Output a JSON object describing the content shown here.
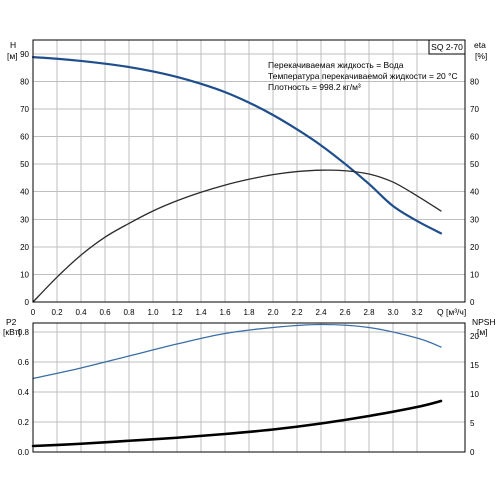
{
  "chart_data": {
    "type": "line",
    "title": "SQ 2-70",
    "notes": [
      "Перекачиваемая жидкость = Вода",
      "Температура перекачиваемой жидкости = 20 °C",
      "Плотность = 998.2 кг/м³"
    ],
    "x_axis": {
      "label_text": "Q",
      "label_unit": "[м³/ч]",
      "range": [
        0,
        3.6
      ],
      "ticks": [
        "0",
        "0.2",
        "0.4",
        "0.6",
        "0.8",
        "1.0",
        "1.2",
        "1.4",
        "1.6",
        "1.8",
        "2.0",
        "2.2",
        "2.4",
        "2.6",
        "2.8",
        "3.0",
        "3.2"
      ]
    },
    "top_panel": {
      "left_axis": {
        "label_line1": "H",
        "label_line2": "[м]",
        "range": [
          0,
          95
        ],
        "ticks": [
          "0",
          "10",
          "20",
          "30",
          "40",
          "50",
          "60",
          "70",
          "80",
          "90"
        ]
      },
      "right_axis": {
        "label_line1": "eta",
        "label_line2": "[%]",
        "range": [
          0,
          95
        ],
        "ticks": [
          "0",
          "10",
          "20",
          "30",
          "40",
          "50",
          "60",
          "70",
          "80"
        ]
      },
      "series": [
        {
          "id": "head",
          "axis": "left",
          "color": "#1f4e8c",
          "x": [
            0,
            0.2,
            0.4,
            0.6,
            0.8,
            1.0,
            1.2,
            1.4,
            1.6,
            1.8,
            2.0,
            2.2,
            2.4,
            2.6,
            2.8,
            3.0,
            3.2,
            3.4
          ],
          "y": [
            88.8,
            88.2,
            87.4,
            86.4,
            85.2,
            83.6,
            81.6,
            79.1,
            76.1,
            72.3,
            67.8,
            62.6,
            56.8,
            50.1,
            42.8,
            34.8,
            29.4,
            24.9
          ]
        },
        {
          "id": "efficiency",
          "axis": "right",
          "color": "#2b2b2b",
          "x": [
            0,
            0.2,
            0.4,
            0.6,
            0.8,
            1.0,
            1.2,
            1.4,
            1.6,
            1.8,
            2.0,
            2.2,
            2.4,
            2.6,
            2.8,
            3.0,
            3.2,
            3.4
          ],
          "y": [
            0,
            9,
            17,
            23.5,
            28.5,
            33,
            36.7,
            39.8,
            42.4,
            44.5,
            46.2,
            47.3,
            47.8,
            47.6,
            46.4,
            43.5,
            38.5,
            33
          ]
        }
      ]
    },
    "bottom_panel": {
      "left_axis": {
        "label_line1": "P2",
        "label_line2": "[кВт]",
        "range": [
          0,
          0.86
        ],
        "ticks": [
          "0.0",
          "0.2",
          "0.4",
          "0.6",
          "0.8"
        ]
      },
      "right_axis": {
        "label_line1": "NPSH",
        "label_line2": "[м]",
        "range": [
          0,
          22.2
        ],
        "ticks": [
          "0",
          "5",
          "10",
          "15",
          "20"
        ]
      },
      "series": [
        {
          "id": "power",
          "axis": "left",
          "color": "#3a6ea5",
          "x": [
            0,
            0.4,
            0.8,
            1.2,
            1.6,
            2.0,
            2.4,
            2.8,
            3.2,
            3.4
          ],
          "y": [
            0.49,
            0.56,
            0.64,
            0.72,
            0.79,
            0.83,
            0.85,
            0.83,
            0.76,
            0.7
          ]
        },
        {
          "id": "npsh",
          "axis": "left",
          "color": "#000000",
          "x": [
            0,
            0.4,
            0.8,
            1.2,
            1.6,
            2.0,
            2.4,
            2.8,
            3.2,
            3.4
          ],
          "y": [
            0.04,
            0.055,
            0.075,
            0.095,
            0.12,
            0.15,
            0.19,
            0.24,
            0.3,
            0.34
          ]
        }
      ]
    }
  }
}
